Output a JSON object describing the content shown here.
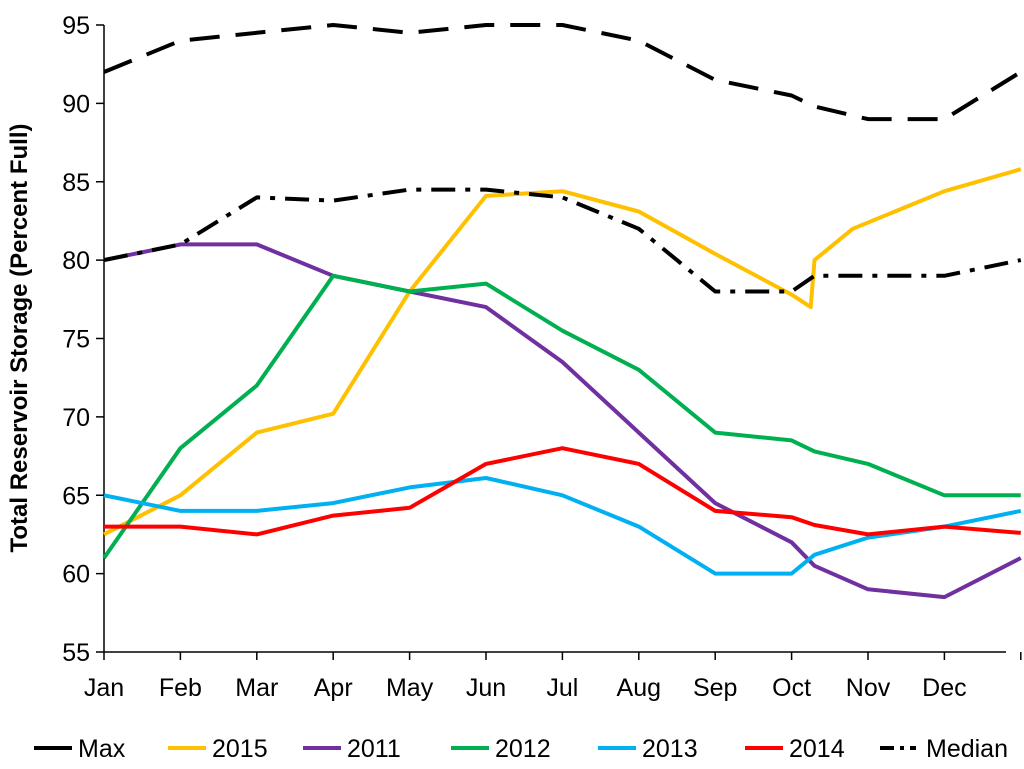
{
  "chart_data": {
    "type": "line",
    "title": "",
    "xlabel": "",
    "ylabel": "Total Reservoir Storage (Percent Full)",
    "ylim": [
      55,
      95
    ],
    "yticks": [
      "55",
      "60",
      "65",
      "70",
      "75",
      "80",
      "85",
      "90",
      "95"
    ],
    "categories": [
      "Jan",
      "Feb",
      "Mar",
      "Apr",
      "May",
      "Jun",
      "Jul",
      "Aug",
      "Sep",
      "Oct",
      "Nov",
      "Dec"
    ],
    "x_note": "x values are month positions: 1 = Jan tick, 12 = Dec tick; 13 = end of Dec",
    "legend_position": "bottom",
    "series": [
      {
        "name": "Max",
        "color": "#000000",
        "dash": "long-dash",
        "points": [
          [
            1,
            92
          ],
          [
            2,
            94
          ],
          [
            3,
            94.5
          ],
          [
            4,
            95
          ],
          [
            5,
            94.5
          ],
          [
            6,
            95
          ],
          [
            7,
            95
          ],
          [
            8,
            94
          ],
          [
            9,
            91.5
          ],
          [
            10,
            90.5
          ],
          [
            10.3,
            89.8
          ],
          [
            11,
            89
          ],
          [
            12,
            89
          ],
          [
            13,
            92
          ]
        ]
      },
      {
        "name": "2015",
        "color": "#FFC000",
        "dash": "solid",
        "points": [
          [
            1,
            62.5
          ],
          [
            2,
            65
          ],
          [
            3,
            69
          ],
          [
            4,
            70.2
          ],
          [
            5,
            78
          ],
          [
            6,
            84.1
          ],
          [
            7,
            84.4
          ],
          [
            8,
            83.1
          ],
          [
            9,
            80.4
          ],
          [
            10,
            77.8
          ],
          [
            10.25,
            77
          ],
          [
            10.3,
            80
          ],
          [
            10.8,
            82
          ],
          [
            12,
            84.4
          ],
          [
            13,
            85.8
          ]
        ]
      },
      {
        "name": "2011",
        "color": "#7030A0",
        "dash": "solid",
        "points": [
          [
            1,
            80
          ],
          [
            2,
            81
          ],
          [
            3,
            81
          ],
          [
            4,
            79
          ],
          [
            5,
            78
          ],
          [
            6,
            77
          ],
          [
            7,
            73.5
          ],
          [
            8,
            69
          ],
          [
            9,
            64.5
          ],
          [
            10,
            62
          ],
          [
            10.3,
            60.5
          ],
          [
            11,
            59
          ],
          [
            12,
            58.5
          ],
          [
            13,
            61
          ]
        ]
      },
      {
        "name": "2012",
        "color": "#00B050",
        "dash": "solid",
        "points": [
          [
            1,
            61
          ],
          [
            2,
            68
          ],
          [
            3,
            72
          ],
          [
            4,
            79
          ],
          [
            5,
            78
          ],
          [
            6,
            78.5
          ],
          [
            7,
            75.5
          ],
          [
            8,
            73
          ],
          [
            9,
            69
          ],
          [
            10,
            68.5
          ],
          [
            10.3,
            67.8
          ],
          [
            11,
            67
          ],
          [
            12,
            65
          ],
          [
            13,
            65
          ]
        ]
      },
      {
        "name": "2013",
        "color": "#00B0F0",
        "dash": "solid",
        "points": [
          [
            1,
            65
          ],
          [
            2,
            64
          ],
          [
            3,
            64
          ],
          [
            4,
            64.5
          ],
          [
            5,
            65.5
          ],
          [
            6,
            66.1
          ],
          [
            7,
            65
          ],
          [
            8,
            63
          ],
          [
            9,
            60
          ],
          [
            10,
            60
          ],
          [
            10.3,
            61.2
          ],
          [
            11,
            62.3
          ],
          [
            12,
            63
          ],
          [
            13,
            64
          ]
        ]
      },
      {
        "name": "2014",
        "color": "#FF0000",
        "dash": "solid",
        "points": [
          [
            1,
            63
          ],
          [
            2,
            63
          ],
          [
            3,
            62.5
          ],
          [
            4,
            63.7
          ],
          [
            5,
            64.2
          ],
          [
            6,
            67
          ],
          [
            7,
            68
          ],
          [
            8,
            67
          ],
          [
            9,
            64
          ],
          [
            10,
            63.6
          ],
          [
            10.3,
            63.1
          ],
          [
            11,
            62.5
          ],
          [
            12,
            63
          ],
          [
            13,
            62.6
          ]
        ]
      },
      {
        "name": "Median",
        "color": "#000000",
        "dash": "dash-dot",
        "points": [
          [
            1,
            80
          ],
          [
            2,
            81
          ],
          [
            3,
            84
          ],
          [
            4,
            83.8
          ],
          [
            5,
            84.5
          ],
          [
            6,
            84.5
          ],
          [
            7,
            84
          ],
          [
            8,
            82
          ],
          [
            9,
            78
          ],
          [
            10,
            78
          ],
          [
            10.3,
            79
          ],
          [
            11,
            79
          ],
          [
            12,
            79
          ],
          [
            13,
            80
          ]
        ]
      }
    ]
  }
}
